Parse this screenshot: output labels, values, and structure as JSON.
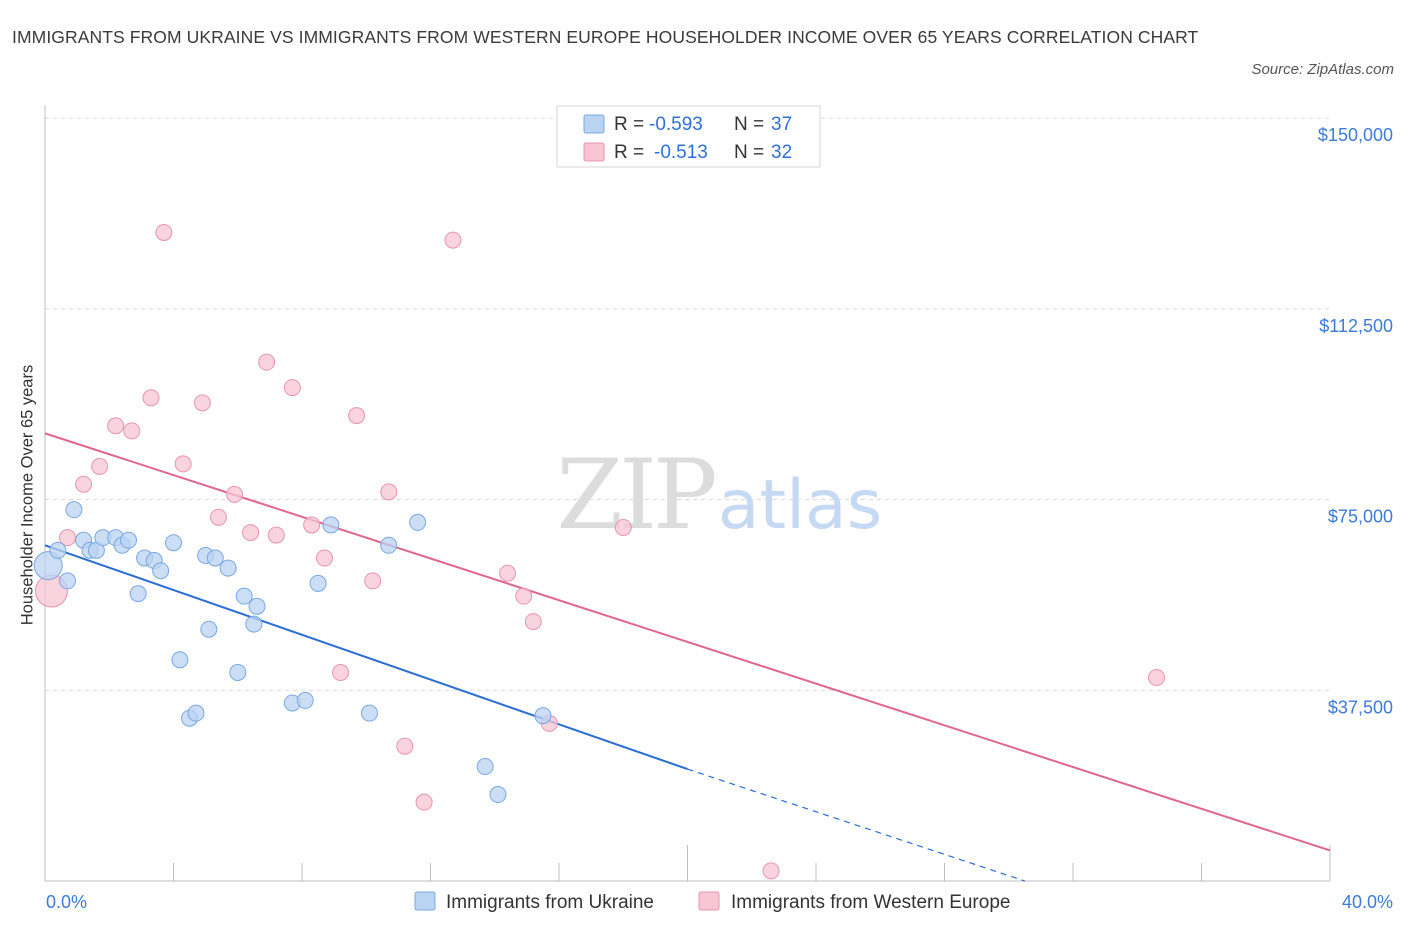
{
  "title": "IMMIGRANTS FROM UKRAINE VS IMMIGRANTS FROM WESTERN EUROPE HOUSEHOLDER INCOME OVER 65 YEARS CORRELATION CHART",
  "source": "Source: ZipAtlas.com",
  "watermark": {
    "zip": "ZIP",
    "atlas": "atlas"
  },
  "legend_box": [
    {
      "r_label": "R =",
      "r_value": "-0.593",
      "n_label": "N =",
      "n_value": "37"
    },
    {
      "r_label": "R =",
      "r_value": "-0.513",
      "n_label": "N =",
      "n_value": "32"
    }
  ],
  "bottom_legend": [
    "Immigrants from Ukraine",
    "Immigrants from Western Europe"
  ],
  "colors": {
    "ukraine_fill": "#b9d3f3",
    "ukraine_stroke": "#7aa8e0",
    "ukraine_line": "#2a6dd3",
    "we_fill": "#f7c5d4",
    "we_stroke": "#e894b0",
    "we_line": "#e0668f",
    "tick_text": "#3d7bd8",
    "grid": "#d9d9d9"
  },
  "chart_data": {
    "type": "scatter",
    "title": "IMMIGRANTS FROM UKRAINE VS IMMIGRANTS FROM WESTERN EUROPE HOUSEHOLDER INCOME OVER 65 YEARS CORRELATION CHART",
    "xlabel": "",
    "ylabel": "Householder Income Over 65 years",
    "xlim": [
      0,
      40
    ],
    "ylim": [
      0,
      150000
    ],
    "x_tick_labels": [
      "0.0%",
      "40.0%"
    ],
    "y_ticks": [
      37500,
      75000,
      112500,
      150000
    ],
    "y_tick_labels": [
      "$37,500",
      "$75,000",
      "$112,500",
      "$150,000"
    ],
    "grid": true,
    "legend_placement": "top-center",
    "series": [
      {
        "name": "Immigrants from Ukraine",
        "R": -0.593,
        "N": 37,
        "points": [
          [
            0.1,
            62000
          ],
          [
            0.4,
            65000
          ],
          [
            0.7,
            59000
          ],
          [
            0.9,
            73000
          ],
          [
            1.2,
            67000
          ],
          [
            1.4,
            65000
          ],
          [
            1.6,
            65000
          ],
          [
            1.8,
            67500
          ],
          [
            2.2,
            67500
          ],
          [
            2.4,
            66000
          ],
          [
            2.6,
            67000
          ],
          [
            2.9,
            56500
          ],
          [
            3.1,
            63500
          ],
          [
            3.4,
            63000
          ],
          [
            3.6,
            61000
          ],
          [
            4.0,
            66500
          ],
          [
            4.2,
            43500
          ],
          [
            4.5,
            32000
          ],
          [
            4.7,
            33000
          ],
          [
            5.0,
            64000
          ],
          [
            5.1,
            49500
          ],
          [
            5.3,
            63500
          ],
          [
            5.7,
            61500
          ],
          [
            6.0,
            41000
          ],
          [
            6.2,
            56000
          ],
          [
            6.5,
            50500
          ],
          [
            6.6,
            54000
          ],
          [
            7.7,
            35000
          ],
          [
            8.1,
            35500
          ],
          [
            8.5,
            58500
          ],
          [
            8.9,
            70000
          ],
          [
            10.1,
            33000
          ],
          [
            10.7,
            66000
          ],
          [
            11.6,
            70500
          ],
          [
            13.7,
            22500
          ],
          [
            14.1,
            17000
          ],
          [
            15.5,
            32500
          ]
        ],
        "trend": {
          "x0": 0,
          "y0": 66000,
          "x1": 20,
          "y1": 22000,
          "dashed_to_x": 30.5,
          "dashed_to_y": 0
        }
      },
      {
        "name": "Immigrants from Western Europe",
        "R": -0.513,
        "N": 32,
        "points": [
          [
            0.2,
            57000
          ],
          [
            0.7,
            67500
          ],
          [
            1.2,
            78000
          ],
          [
            1.7,
            81500
          ],
          [
            2.2,
            89500
          ],
          [
            2.7,
            88500
          ],
          [
            3.3,
            95000
          ],
          [
            3.7,
            127500
          ],
          [
            4.3,
            82000
          ],
          [
            4.9,
            94000
          ],
          [
            5.4,
            71500
          ],
          [
            5.9,
            76000
          ],
          [
            6.4,
            68500
          ],
          [
            6.9,
            102000
          ],
          [
            7.2,
            68000
          ],
          [
            7.7,
            97000
          ],
          [
            8.3,
            70000
          ],
          [
            8.7,
            63500
          ],
          [
            9.2,
            41000
          ],
          [
            9.7,
            91500
          ],
          [
            10.2,
            59000
          ],
          [
            10.7,
            76500
          ],
          [
            11.2,
            26500
          ],
          [
            11.8,
            15500
          ],
          [
            12.7,
            126000
          ],
          [
            14.4,
            60500
          ],
          [
            14.9,
            56000
          ],
          [
            15.2,
            51000
          ],
          [
            15.7,
            31000
          ],
          [
            18.0,
            69500
          ],
          [
            22.6,
            2000
          ],
          [
            34.6,
            40000
          ]
        ],
        "trend": {
          "x0": 0,
          "y0": 88000,
          "x1": 40,
          "y1": 6000
        }
      }
    ]
  }
}
